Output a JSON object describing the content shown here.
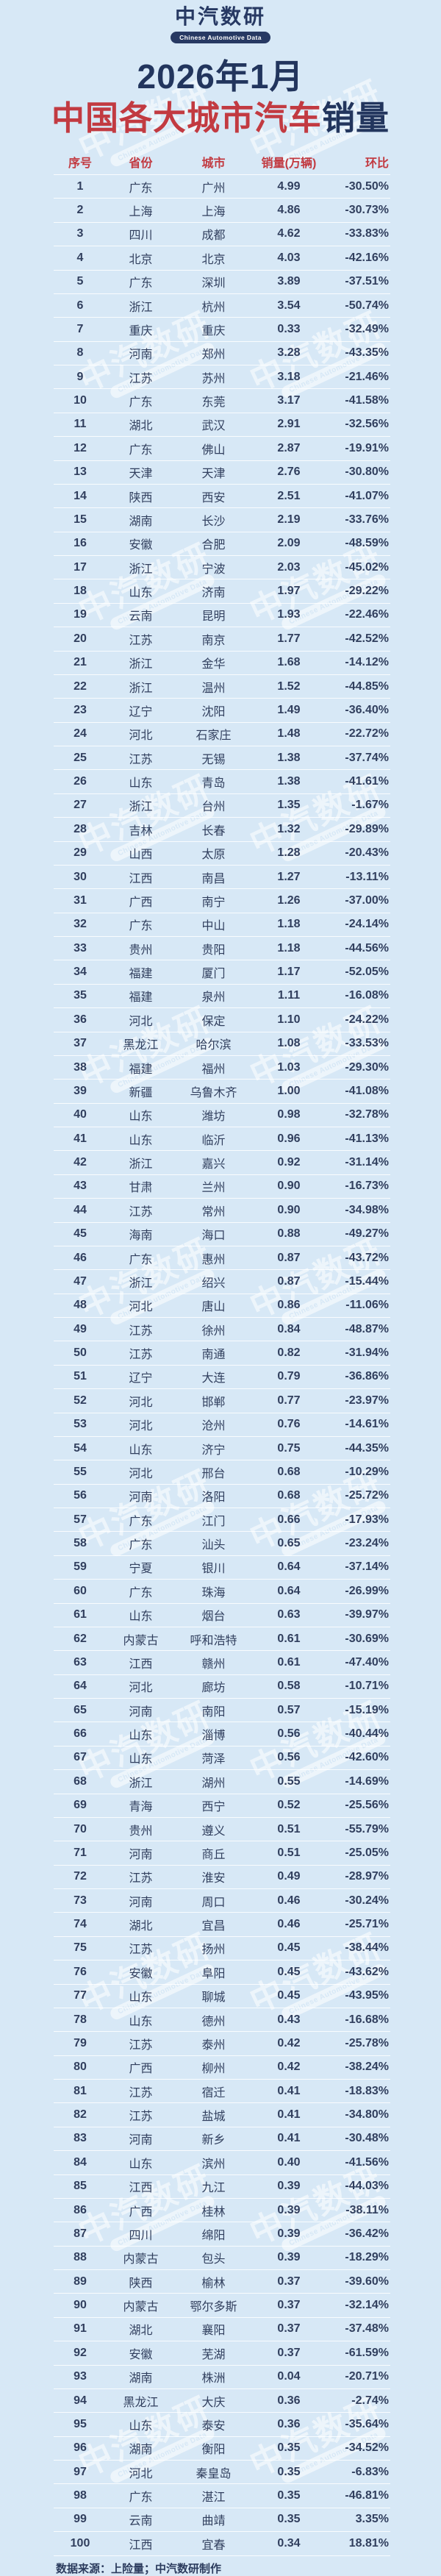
{
  "logo": {
    "text": "中汽数研",
    "subtitle": "Chinese Automotive Data"
  },
  "title": {
    "line1": "2026年1月",
    "line2_red": "中国各大城市汽车",
    "line2_navy": "销量"
  },
  "chart_data": {
    "type": "table",
    "title": "2026年1月中国各大城市汽车销量",
    "columns": [
      "序号",
      "省份",
      "城市",
      "销量(万辆)",
      "环比"
    ],
    "rows": [
      [
        1,
        "广东",
        "广州",
        "4.99",
        "-30.50%"
      ],
      [
        2,
        "上海",
        "上海",
        "4.86",
        "-30.73%"
      ],
      [
        3,
        "四川",
        "成都",
        "4.62",
        "-33.83%"
      ],
      [
        4,
        "北京",
        "北京",
        "4.03",
        "-42.16%"
      ],
      [
        5,
        "广东",
        "深圳",
        "3.89",
        "-37.51%"
      ],
      [
        6,
        "浙江",
        "杭州",
        "3.54",
        "-50.74%"
      ],
      [
        7,
        "重庆",
        "重庆",
        "0.33",
        "-32.49%"
      ],
      [
        8,
        "河南",
        "郑州",
        "3.28",
        "-43.35%"
      ],
      [
        9,
        "江苏",
        "苏州",
        "3.18",
        "-21.46%"
      ],
      [
        10,
        "广东",
        "东莞",
        "3.17",
        "-41.58%"
      ],
      [
        11,
        "湖北",
        "武汉",
        "2.91",
        "-32.56%"
      ],
      [
        12,
        "广东",
        "佛山",
        "2.87",
        "-19.91%"
      ],
      [
        13,
        "天津",
        "天津",
        "2.76",
        "-30.80%"
      ],
      [
        14,
        "陕西",
        "西安",
        "2.51",
        "-41.07%"
      ],
      [
        15,
        "湖南",
        "长沙",
        "2.19",
        "-33.76%"
      ],
      [
        16,
        "安徽",
        "合肥",
        "2.09",
        "-48.59%"
      ],
      [
        17,
        "浙江",
        "宁波",
        "2.03",
        "-45.02%"
      ],
      [
        18,
        "山东",
        "济南",
        "1.97",
        "-29.22%"
      ],
      [
        19,
        "云南",
        "昆明",
        "1.93",
        "-22.46%"
      ],
      [
        20,
        "江苏",
        "南京",
        "1.77",
        "-42.52%"
      ],
      [
        21,
        "浙江",
        "金华",
        "1.68",
        "-14.12%"
      ],
      [
        22,
        "浙江",
        "温州",
        "1.52",
        "-44.85%"
      ],
      [
        23,
        "辽宁",
        "沈阳",
        "1.49",
        "-36.40%"
      ],
      [
        24,
        "河北",
        "石家庄",
        "1.48",
        "-22.72%"
      ],
      [
        25,
        "江苏",
        "无锡",
        "1.38",
        "-37.74%"
      ],
      [
        26,
        "山东",
        "青岛",
        "1.38",
        "-41.61%"
      ],
      [
        27,
        "浙江",
        "台州",
        "1.35",
        "-1.67%"
      ],
      [
        28,
        "吉林",
        "长春",
        "1.32",
        "-29.89%"
      ],
      [
        29,
        "山西",
        "太原",
        "1.28",
        "-20.43%"
      ],
      [
        30,
        "江西",
        "南昌",
        "1.27",
        "-13.11%"
      ],
      [
        31,
        "广西",
        "南宁",
        "1.26",
        "-37.00%"
      ],
      [
        32,
        "广东",
        "中山",
        "1.18",
        "-24.14%"
      ],
      [
        33,
        "贵州",
        "贵阳",
        "1.18",
        "-44.56%"
      ],
      [
        34,
        "福建",
        "厦门",
        "1.17",
        "-52.05%"
      ],
      [
        35,
        "福建",
        "泉州",
        "1.11",
        "-16.08%"
      ],
      [
        36,
        "河北",
        "保定",
        "1.10",
        "-24.22%"
      ],
      [
        37,
        "黑龙江",
        "哈尔滨",
        "1.08",
        "-33.53%"
      ],
      [
        38,
        "福建",
        "福州",
        "1.03",
        "-29.30%"
      ],
      [
        39,
        "新疆",
        "乌鲁木齐",
        "1.00",
        "-41.08%"
      ],
      [
        40,
        "山东",
        "潍坊",
        "0.98",
        "-32.78%"
      ],
      [
        41,
        "山东",
        "临沂",
        "0.96",
        "-41.13%"
      ],
      [
        42,
        "浙江",
        "嘉兴",
        "0.92",
        "-31.14%"
      ],
      [
        43,
        "甘肃",
        "兰州",
        "0.90",
        "-16.73%"
      ],
      [
        44,
        "江苏",
        "常州",
        "0.90",
        "-34.98%"
      ],
      [
        45,
        "海南",
        "海口",
        "0.88",
        "-49.27%"
      ],
      [
        46,
        "广东",
        "惠州",
        "0.87",
        "-43.72%"
      ],
      [
        47,
        "浙江",
        "绍兴",
        "0.87",
        "-15.44%"
      ],
      [
        48,
        "河北",
        "唐山",
        "0.86",
        "-11.06%"
      ],
      [
        49,
        "江苏",
        "徐州",
        "0.84",
        "-48.87%"
      ],
      [
        50,
        "江苏",
        "南通",
        "0.82",
        "-31.94%"
      ],
      [
        51,
        "辽宁",
        "大连",
        "0.79",
        "-36.86%"
      ],
      [
        52,
        "河北",
        "邯郸",
        "0.77",
        "-23.97%"
      ],
      [
        53,
        "河北",
        "沧州",
        "0.76",
        "-14.61%"
      ],
      [
        54,
        "山东",
        "济宁",
        "0.75",
        "-44.35%"
      ],
      [
        55,
        "河北",
        "邢台",
        "0.68",
        "-10.29%"
      ],
      [
        56,
        "河南",
        "洛阳",
        "0.68",
        "-25.72%"
      ],
      [
        57,
        "广东",
        "江门",
        "0.66",
        "-17.93%"
      ],
      [
        58,
        "广东",
        "汕头",
        "0.65",
        "-23.24%"
      ],
      [
        59,
        "宁夏",
        "银川",
        "0.64",
        "-37.14%"
      ],
      [
        60,
        "广东",
        "珠海",
        "0.64",
        "-26.99%"
      ],
      [
        61,
        "山东",
        "烟台",
        "0.63",
        "-39.97%"
      ],
      [
        62,
        "内蒙古",
        "呼和浩特",
        "0.61",
        "-30.69%"
      ],
      [
        63,
        "江西",
        "赣州",
        "0.61",
        "-47.40%"
      ],
      [
        64,
        "河北",
        "廊坊",
        "0.58",
        "-10.71%"
      ],
      [
        65,
        "河南",
        "南阳",
        "0.57",
        "-15.19%"
      ],
      [
        66,
        "山东",
        "淄博",
        "0.56",
        "-40.44%"
      ],
      [
        67,
        "山东",
        "菏泽",
        "0.56",
        "-42.60%"
      ],
      [
        68,
        "浙江",
        "湖州",
        "0.55",
        "-14.69%"
      ],
      [
        69,
        "青海",
        "西宁",
        "0.52",
        "-25.56%"
      ],
      [
        70,
        "贵州",
        "遵义",
        "0.51",
        "-55.79%"
      ],
      [
        71,
        "河南",
        "商丘",
        "0.51",
        "-25.05%"
      ],
      [
        72,
        "江苏",
        "淮安",
        "0.49",
        "-28.97%"
      ],
      [
        73,
        "河南",
        "周口",
        "0.46",
        "-30.24%"
      ],
      [
        74,
        "湖北",
        "宜昌",
        "0.46",
        "-25.71%"
      ],
      [
        75,
        "江苏",
        "扬州",
        "0.45",
        "-38.44%"
      ],
      [
        76,
        "安徽",
        "阜阳",
        "0.45",
        "-43.62%"
      ],
      [
        77,
        "山东",
        "聊城",
        "0.45",
        "-43.95%"
      ],
      [
        78,
        "山东",
        "德州",
        "0.43",
        "-16.68%"
      ],
      [
        79,
        "江苏",
        "泰州",
        "0.42",
        "-25.78%"
      ],
      [
        80,
        "广西",
        "柳州",
        "0.42",
        "-38.24%"
      ],
      [
        81,
        "江苏",
        "宿迁",
        "0.41",
        "-18.83%"
      ],
      [
        82,
        "江苏",
        "盐城",
        "0.41",
        "-34.80%"
      ],
      [
        83,
        "河南",
        "新乡",
        "0.41",
        "-30.48%"
      ],
      [
        84,
        "山东",
        "滨州",
        "0.40",
        "-41.56%"
      ],
      [
        85,
        "江西",
        "九江",
        "0.39",
        "-44.03%"
      ],
      [
        86,
        "广西",
        "桂林",
        "0.39",
        "-38.11%"
      ],
      [
        87,
        "四川",
        "绵阳",
        "0.39",
        "-36.42%"
      ],
      [
        88,
        "内蒙古",
        "包头",
        "0.39",
        "-18.29%"
      ],
      [
        89,
        "陕西",
        "榆林",
        "0.37",
        "-39.60%"
      ],
      [
        90,
        "内蒙古",
        "鄂尔多斯",
        "0.37",
        "-32.14%"
      ],
      [
        91,
        "湖北",
        "襄阳",
        "0.37",
        "-37.48%"
      ],
      [
        92,
        "安徽",
        "芜湖",
        "0.37",
        "-61.59%"
      ],
      [
        93,
        "湖南",
        "株洲",
        "0.04",
        "-20.71%"
      ],
      [
        94,
        "黑龙江",
        "大庆",
        "0.36",
        "-2.74%"
      ],
      [
        95,
        "山东",
        "泰安",
        "0.36",
        "-35.64%"
      ],
      [
        96,
        "湖南",
        "衡阳",
        "0.35",
        "-34.52%"
      ],
      [
        97,
        "河北",
        "秦皇岛",
        "0.35",
        "-6.83%"
      ],
      [
        98,
        "广东",
        "湛江",
        "0.35",
        "-46.81%"
      ],
      [
        99,
        "云南",
        "曲靖",
        "0.35",
        "3.35%"
      ],
      [
        100,
        "江西",
        "宜春",
        "0.34",
        "18.81%"
      ]
    ]
  },
  "footer": {
    "source": "数据来源：上险量；中汽数研制作"
  },
  "watermark": {
    "text": "中汽数研",
    "subtitle": "Chinese Automotive Data"
  },
  "colors": {
    "background": "#d7e8f6",
    "navy": "#22355d",
    "red": "#c23a41",
    "row_text": "#313f5e"
  }
}
